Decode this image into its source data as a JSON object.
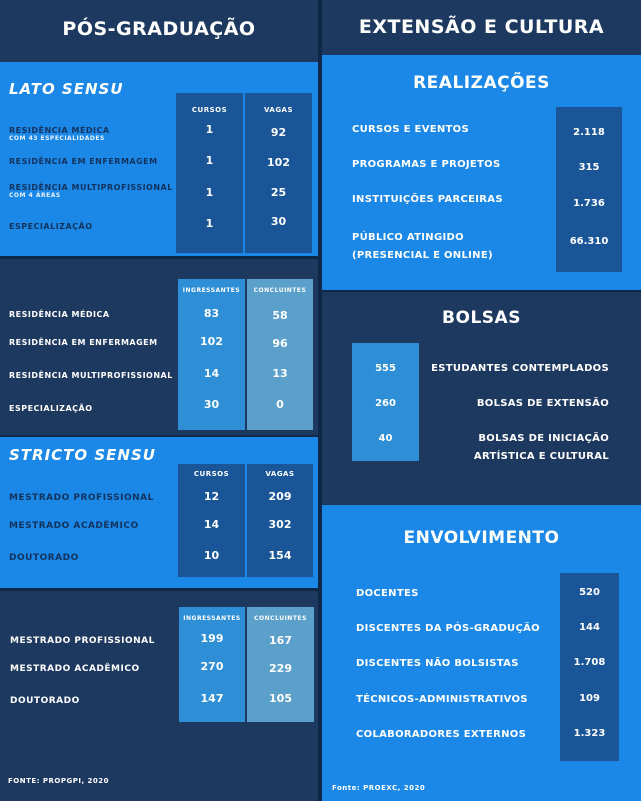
{
  "left": {
    "title": "PÓS-GRADUAÇÃO",
    "lato": {
      "title": "LATO SENSU",
      "headers": [
        "CURSOS",
        "VAGAS"
      ],
      "rows": [
        {
          "label": "RESIDÊNCIA MÉDICA",
          "sub": "COM 43 ESPECIALIDADES",
          "cursos": "1",
          "vagas": "92"
        },
        {
          "label": "RESIDÊNCIA EM ENFERMAGEM",
          "sub": "",
          "cursos": "1",
          "vagas": "102"
        },
        {
          "label": "RESIDÊNCIA MULTIPROFISSIONAL",
          "sub": "COM 4 ÁREAS",
          "cursos": "1",
          "vagas": "25"
        },
        {
          "label": "ESPECIALIZAÇÃO",
          "sub": "",
          "cursos": "1",
          "vagas": "30"
        }
      ]
    },
    "lato_flow": {
      "headers": [
        "INGRESSANTES",
        "CONCLUINTES"
      ],
      "rows": [
        {
          "label": "RESIDÊNCIA MÉDICA",
          "ing": "83",
          "con": "58"
        },
        {
          "label": "RESIDÊNCIA EM ENFERMAGEM",
          "ing": "102",
          "con": "96"
        },
        {
          "label": "RESIDÊNCIA MULTIPROFISSIONAL",
          "ing": "14",
          "con": "13"
        },
        {
          "label": "ESPECIALIZAÇÃO",
          "ing": "30",
          "con": "0"
        }
      ]
    },
    "stricto": {
      "title": "STRICTO SENSU",
      "headers": [
        "CURSOS",
        "VAGAS"
      ],
      "rows": [
        {
          "label": "MESTRADO PROFISSIONAL",
          "cursos": "12",
          "vagas": "209"
        },
        {
          "label": "MESTRADO ACADÊMICO",
          "cursos": "14",
          "vagas": "302"
        },
        {
          "label": "DOUTORADO",
          "cursos": "10",
          "vagas": "154"
        }
      ]
    },
    "stricto_flow": {
      "headers": [
        "INGRESSANTES",
        "CONCLUINTES"
      ],
      "rows": [
        {
          "label": "MESTRADO PROFISSIONAL",
          "ing": "199",
          "con": "167"
        },
        {
          "label": "MESTRADO ACADÊMICO",
          "ing": "270",
          "con": "229"
        },
        {
          "label": "DOUTORADO",
          "ing": "147",
          "con": "105"
        }
      ]
    },
    "source": "FONTE: PROPGPI, 2020"
  },
  "right": {
    "title": "EXTENSÃO E CULTURA",
    "realizacoes": {
      "title": "REALIZAÇÕES",
      "rows": [
        {
          "label": "CURSOS E EVENTOS",
          "value": "2.118"
        },
        {
          "label": "PROGRAMAS E PROJETOS",
          "value": "315"
        },
        {
          "label": "INSTITUIÇÕES PARCEIRAS",
          "value": "1.736"
        },
        {
          "label": "PÚBLICO ATINGIDO",
          "label2": "(PRESENCIAL E ONLINE)",
          "value": "66.310"
        }
      ]
    },
    "bolsas": {
      "title": "BOLSAS",
      "rows": [
        {
          "value": "555",
          "label": "ESTUDANTES CONTEMPLADOS"
        },
        {
          "value": "260",
          "label": "BOLSAS DE EXTENSÃO"
        },
        {
          "value": "40",
          "label": "BOLSAS DE INICIAÇÃO",
          "label2": "ARTÍSTICA E CULTURAL"
        }
      ]
    },
    "envolvimento": {
      "title": "ENVOLVIMENTO",
      "rows": [
        {
          "label": "DOCENTES",
          "value": "520"
        },
        {
          "label": "DISCENTES DA PÓS-GRADUÇÃO",
          "value": "144"
        },
        {
          "label": "DISCENTES NÃO BOLSISTAS",
          "value": "1.708"
        },
        {
          "label": "TÉCNICOS-ADMINISTRATIVOS",
          "value": "109"
        },
        {
          "label": "COLABORADORES EXTERNOS",
          "value": "1.323"
        }
      ]
    },
    "source": "Fonte: PROEXC, 2020"
  },
  "colors": {
    "navy": "#1d3960",
    "blue": "#1b88e8",
    "dark_col": "#1a5597",
    "ing_col": "#2f8fd6",
    "con_col": "#5b9fcb"
  }
}
